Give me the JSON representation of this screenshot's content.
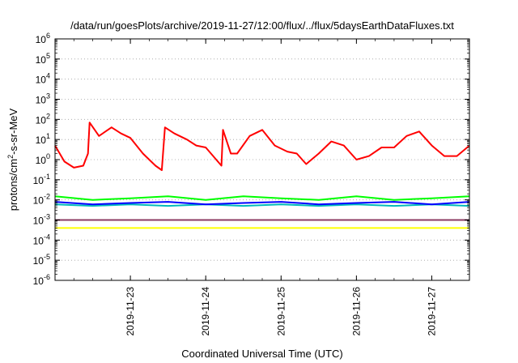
{
  "chart_data": {
    "type": "line",
    "title": "/data/run/goesPlots/archive/2019-11-27/12:00/flux/../flux/5daysEarthDataFluxes.txt",
    "xlabel": "Coordinated Universal Time (UTC)",
    "ylabel_prefix": "protons/cm",
    "ylabel_sup": "2",
    "ylabel_suffix": "-s-sr-MeV",
    "y_scale": "log",
    "ylim": [
      1e-06,
      1000000.0
    ],
    "xlim": [
      "2019-11-22T00:00",
      "2019-11-27T12:00"
    ],
    "grid": "horizontal dotted",
    "legend": "none",
    "y_ticks": [
      {
        "base": "10",
        "exp": "-6"
      },
      {
        "base": "10",
        "exp": "-5"
      },
      {
        "base": "10",
        "exp": "-4"
      },
      {
        "base": "10",
        "exp": "-3"
      },
      {
        "base": "10",
        "exp": "-2"
      },
      {
        "base": "10",
        "exp": "-1"
      },
      {
        "base": "10",
        "exp": "0"
      },
      {
        "base": "10",
        "exp": "1"
      },
      {
        "base": "10",
        "exp": "2"
      },
      {
        "base": "10",
        "exp": "3"
      },
      {
        "base": "10",
        "exp": "4"
      },
      {
        "base": "10",
        "exp": "5"
      },
      {
        "base": "10",
        "exp": "6"
      }
    ],
    "x_ticks": [
      "2019-11-23",
      "2019-11-24",
      "2019-11-25",
      "2019-11-26",
      "2019-11-27"
    ],
    "series": [
      {
        "color": "#ff0000",
        "x": [
          "2019-11-22T00:00",
          "2019-11-22T03:00",
          "2019-11-22T06:00",
          "2019-11-22T09:00",
          "2019-11-22T10:30",
          "2019-11-22T11:00",
          "2019-11-22T14:00",
          "2019-11-22T18:00",
          "2019-11-22T21:00",
          "2019-11-23T00:00",
          "2019-11-23T04:00",
          "2019-11-23T08:00",
          "2019-11-23T10:00",
          "2019-11-23T11:00",
          "2019-11-23T14:00",
          "2019-11-23T18:00",
          "2019-11-23T21:00",
          "2019-11-24T00:00",
          "2019-11-24T05:00",
          "2019-11-24T05:30",
          "2019-11-24T08:00",
          "2019-11-24T10:00",
          "2019-11-24T14:00",
          "2019-11-24T18:00",
          "2019-11-24T22:00",
          "2019-11-25T02:00",
          "2019-11-25T05:00",
          "2019-11-25T08:00",
          "2019-11-25T12:00",
          "2019-11-25T16:00",
          "2019-11-25T20:00",
          "2019-11-26T00:00",
          "2019-11-26T04:00",
          "2019-11-26T08:00",
          "2019-11-26T12:00",
          "2019-11-26T16:00",
          "2019-11-26T20:00",
          "2019-11-27T00:00",
          "2019-11-27T04:00",
          "2019-11-27T08:00",
          "2019-11-27T12:00"
        ],
        "values": [
          5,
          0.8,
          0.4,
          0.5,
          2,
          70,
          15,
          40,
          20,
          12,
          2,
          0.5,
          0.3,
          40,
          20,
          10,
          5,
          4,
          0.5,
          30,
          2,
          2,
          15,
          30,
          5,
          2.5,
          2,
          0.6,
          2,
          8,
          5,
          1,
          1.5,
          4,
          4,
          15,
          25,
          5,
          1.5,
          1.5,
          5
        ]
      },
      {
        "color": "#00ff00",
        "x": [
          "2019-11-22T00:00",
          "2019-11-22T12:00",
          "2019-11-23T00:00",
          "2019-11-23T12:00",
          "2019-11-24T00:00",
          "2019-11-24T12:00",
          "2019-11-25T00:00",
          "2019-11-25T12:00",
          "2019-11-26T00:00",
          "2019-11-26T12:00",
          "2019-11-27T00:00",
          "2019-11-27T12:00"
        ],
        "values": [
          0.015,
          0.01,
          0.012,
          0.015,
          0.01,
          0.015,
          0.012,
          0.01,
          0.015,
          0.01,
          0.012,
          0.015
        ]
      },
      {
        "color": "#00bbbb",
        "x": [
          "2019-11-22T00:00",
          "2019-11-22T12:00",
          "2019-11-23T00:00",
          "2019-11-23T12:00",
          "2019-11-24T00:00",
          "2019-11-24T12:00",
          "2019-11-25T00:00",
          "2019-11-25T12:00",
          "2019-11-26T00:00",
          "2019-11-26T12:00",
          "2019-11-27T00:00",
          "2019-11-27T12:00"
        ],
        "values": [
          0.006,
          0.005,
          0.006,
          0.005,
          0.006,
          0.005,
          0.006,
          0.005,
          0.006,
          0.005,
          0.006,
          0.005
        ]
      },
      {
        "color": "#0000ff",
        "x": [
          "2019-11-22T00:00",
          "2019-11-22T12:00",
          "2019-11-23T00:00",
          "2019-11-23T12:00",
          "2019-11-24T00:00",
          "2019-11-24T12:00",
          "2019-11-25T00:00",
          "2019-11-25T12:00",
          "2019-11-26T00:00",
          "2019-11-26T12:00",
          "2019-11-27T00:00",
          "2019-11-27T12:00"
        ],
        "values": [
          0.008,
          0.006,
          0.007,
          0.008,
          0.006,
          0.007,
          0.008,
          0.006,
          0.007,
          0.008,
          0.006,
          0.008
        ]
      },
      {
        "color": "#ffff00",
        "x": [
          "2019-11-22T00:00",
          "2019-11-22T12:00",
          "2019-11-23T00:00",
          "2019-11-23T12:00",
          "2019-11-24T00:00",
          "2019-11-24T12:00",
          "2019-11-25T00:00",
          "2019-11-25T12:00",
          "2019-11-26T00:00",
          "2019-11-26T12:00",
          "2019-11-27T00:00",
          "2019-11-27T12:00"
        ],
        "values": [
          0.0004,
          0.0004,
          0.0004,
          0.0004,
          0.0004,
          0.0004,
          0.0004,
          0.0004,
          0.0004,
          0.0004,
          0.0004,
          0.0004
        ]
      },
      {
        "color": "#8b3a62",
        "x": [
          "2019-11-22T00:00",
          "2019-11-22T12:00",
          "2019-11-23T00:00",
          "2019-11-23T12:00",
          "2019-11-24T00:00",
          "2019-11-24T12:00",
          "2019-11-25T00:00",
          "2019-11-25T12:00",
          "2019-11-26T00:00",
          "2019-11-26T12:00",
          "2019-11-27T00:00",
          "2019-11-27T12:00"
        ],
        "values": [
          0.001,
          0.001,
          0.001,
          0.001,
          0.001,
          0.001,
          0.001,
          0.001,
          0.001,
          0.001,
          0.001,
          0.001
        ]
      }
    ]
  }
}
